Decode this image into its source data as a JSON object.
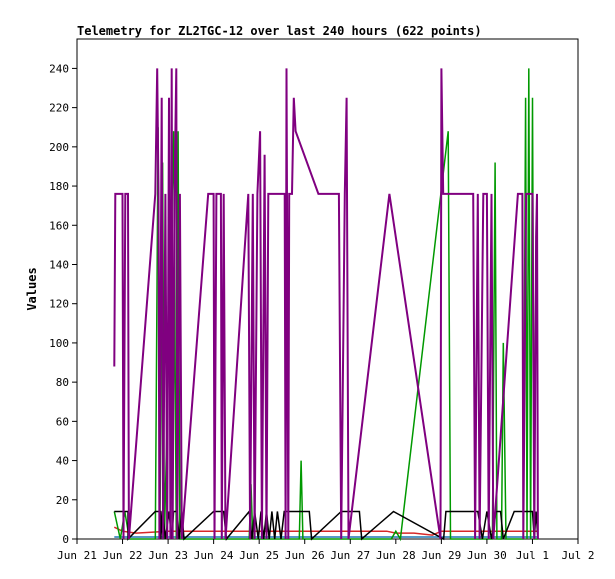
{
  "chart_data": {
    "type": "line",
    "title": "Telemetry for ZL2TGC-12 over last 240 hours (622 points)",
    "ylabel": "Values",
    "xlabel": "",
    "ylim": [
      0,
      255
    ],
    "xlim": [
      0,
      11
    ],
    "y_ticks": [
      0,
      20,
      40,
      60,
      80,
      100,
      120,
      140,
      160,
      180,
      200,
      220,
      240
    ],
    "x_ticks": [
      {
        "x": 0,
        "label": "Jun 21"
      },
      {
        "x": 1,
        "label": "Jun 22"
      },
      {
        "x": 2,
        "label": "Jun 23"
      },
      {
        "x": 3,
        "label": "Jun 24"
      },
      {
        "x": 4,
        "label": "Jun 25"
      },
      {
        "x": 5,
        "label": "Jun 26"
      },
      {
        "x": 6,
        "label": "Jun 27"
      },
      {
        "x": 7,
        "label": "Jun 28"
      },
      {
        "x": 8,
        "label": "Jun 29"
      },
      {
        "x": 9,
        "label": "Jun 30"
      },
      {
        "x": 10,
        "label": "Jul 1"
      },
      {
        "x": 11,
        "label": "Jul 2"
      }
    ],
    "x_unit": "days since Jun 21 00:00",
    "grid": false,
    "legend": "none",
    "series": [
      {
        "color": "#1f77b4",
        "points": [
          [
            0.82,
            1
          ],
          [
            9.98,
            1
          ],
          [
            10.12,
            1
          ]
        ]
      },
      {
        "color": "#d62728",
        "points": [
          [
            0.82,
            6
          ],
          [
            1.0,
            4
          ],
          [
            1.3,
            3
          ],
          [
            2.0,
            4
          ],
          [
            3.0,
            4
          ],
          [
            4.0,
            4
          ],
          [
            5.0,
            4
          ],
          [
            6.0,
            4
          ],
          [
            6.8,
            4
          ],
          [
            7.0,
            3
          ],
          [
            7.4,
            3
          ],
          [
            7.8,
            2
          ],
          [
            8.0,
            4
          ],
          [
            9.0,
            4
          ],
          [
            10.0,
            4
          ],
          [
            10.12,
            4
          ]
        ]
      },
      {
        "color": "#009900",
        "points": [
          [
            0.82,
            14
          ],
          [
            0.95,
            0
          ],
          [
            1.05,
            14
          ],
          [
            1.15,
            0
          ],
          [
            1.72,
            0
          ],
          [
            1.78,
            210
          ],
          [
            1.82,
            0
          ],
          [
            1.88,
            192
          ],
          [
            1.92,
            0
          ],
          [
            2.12,
            208
          ],
          [
            2.18,
            0
          ],
          [
            2.22,
            208
          ],
          [
            2.26,
            0
          ],
          [
            3.78,
            0
          ],
          [
            3.82,
            28
          ],
          [
            3.86,
            0
          ],
          [
            4.88,
            0
          ],
          [
            4.92,
            40
          ],
          [
            4.96,
            0
          ],
          [
            6.9,
            0
          ],
          [
            7.0,
            4
          ],
          [
            7.1,
            0
          ],
          [
            8.15,
            208
          ],
          [
            8.2,
            0
          ],
          [
            9.12,
            0
          ],
          [
            9.18,
            192
          ],
          [
            9.22,
            0
          ],
          [
            9.32,
            0
          ],
          [
            9.36,
            100
          ],
          [
            9.42,
            0
          ],
          [
            9.8,
            0
          ],
          [
            9.85,
            225
          ],
          [
            9.88,
            0
          ],
          [
            9.92,
            240
          ],
          [
            9.96,
            0
          ],
          [
            10.0,
            225
          ],
          [
            10.04,
            0
          ],
          [
            10.12,
            0
          ]
        ]
      },
      {
        "color": "#000000",
        "points": [
          [
            0.82,
            14
          ],
          [
            1.12,
            14
          ],
          [
            1.12,
            0
          ],
          [
            1.72,
            14
          ],
          [
            1.84,
            14
          ],
          [
            1.84,
            0
          ],
          [
            1.88,
            14
          ],
          [
            1.94,
            0
          ],
          [
            2.02,
            14
          ],
          [
            2.08,
            0
          ],
          [
            2.12,
            14
          ],
          [
            2.2,
            14
          ],
          [
            2.24,
            0
          ],
          [
            2.3,
            14
          ],
          [
            2.35,
            0
          ],
          [
            3.0,
            14
          ],
          [
            3.22,
            14
          ],
          [
            3.28,
            0
          ],
          [
            3.78,
            14
          ],
          [
            3.84,
            0
          ],
          [
            3.9,
            14
          ],
          [
            3.98,
            0
          ],
          [
            4.04,
            14
          ],
          [
            4.1,
            0
          ],
          [
            4.16,
            14
          ],
          [
            4.22,
            0
          ],
          [
            4.28,
            14
          ],
          [
            4.34,
            0
          ],
          [
            4.4,
            14
          ],
          [
            4.48,
            0
          ],
          [
            4.55,
            14
          ],
          [
            5.1,
            14
          ],
          [
            5.15,
            0
          ],
          [
            5.8,
            14
          ],
          [
            6.2,
            14
          ],
          [
            6.25,
            0
          ],
          [
            6.95,
            14
          ],
          [
            8.05,
            0
          ],
          [
            8.1,
            14
          ],
          [
            8.8,
            14
          ],
          [
            8.9,
            0
          ],
          [
            9.0,
            14
          ],
          [
            9.1,
            0
          ],
          [
            9.2,
            14
          ],
          [
            9.3,
            14
          ],
          [
            9.36,
            0
          ],
          [
            9.6,
            14
          ],
          [
            10.0,
            14
          ],
          [
            10.04,
            0
          ],
          [
            10.08,
            14
          ],
          [
            10.12,
            0
          ]
        ]
      },
      {
        "color": "#800080",
        "points": [
          [
            0.82,
            88
          ],
          [
            0.84,
            176
          ],
          [
            1.0,
            176
          ],
          [
            1.02,
            0
          ],
          [
            1.06,
            176
          ],
          [
            1.12,
            176
          ],
          [
            1.14,
            0
          ],
          [
            1.72,
            176
          ],
          [
            1.76,
            240
          ],
          [
            1.79,
            176
          ],
          [
            1.81,
            0
          ],
          [
            1.86,
            225
          ],
          [
            1.89,
            0
          ],
          [
            1.94,
            176
          ],
          [
            1.98,
            0
          ],
          [
            2.02,
            225
          ],
          [
            2.05,
            0
          ],
          [
            2.08,
            240
          ],
          [
            2.1,
            0
          ],
          [
            2.14,
            176
          ],
          [
            2.18,
            240
          ],
          [
            2.2,
            0
          ],
          [
            2.26,
            176
          ],
          [
            2.3,
            0
          ],
          [
            2.88,
            176
          ],
          [
            3.0,
            176
          ],
          [
            3.02,
            0
          ],
          [
            3.06,
            176
          ],
          [
            3.16,
            176
          ],
          [
            3.18,
            0
          ],
          [
            3.22,
            176
          ],
          [
            3.26,
            0
          ],
          [
            3.76,
            176
          ],
          [
            3.8,
            0
          ],
          [
            3.86,
            176
          ],
          [
            3.9,
            0
          ],
          [
            3.96,
            176
          ],
          [
            4.02,
            208
          ],
          [
            4.06,
            0
          ],
          [
            4.12,
            196
          ],
          [
            4.16,
            0
          ],
          [
            4.2,
            176
          ],
          [
            4.56,
            176
          ],
          [
            4.58,
            0
          ],
          [
            4.6,
            240
          ],
          [
            4.64,
            0
          ],
          [
            4.66,
            176
          ],
          [
            4.72,
            176
          ],
          [
            4.76,
            225
          ],
          [
            4.8,
            208
          ],
          [
            5.3,
            176
          ],
          [
            5.35,
            176
          ],
          [
            5.75,
            176
          ],
          [
            5.8,
            0
          ],
          [
            5.88,
            176
          ],
          [
            5.92,
            225
          ],
          [
            5.96,
            0
          ],
          [
            6.86,
            176
          ],
          [
            7.98,
            0
          ],
          [
            8.0,
            240
          ],
          [
            8.04,
            176
          ],
          [
            8.7,
            176
          ],
          [
            8.74,
            0
          ],
          [
            8.8,
            176
          ],
          [
            8.84,
            0
          ],
          [
            8.92,
            176
          ],
          [
            9.0,
            176
          ],
          [
            9.04,
            0
          ],
          [
            9.1,
            176
          ],
          [
            9.14,
            0
          ],
          [
            9.68,
            176
          ],
          [
            9.78,
            176
          ],
          [
            9.8,
            0
          ],
          [
            9.86,
            176
          ],
          [
            10.0,
            176
          ],
          [
            10.04,
            0
          ],
          [
            10.08,
            154
          ],
          [
            10.1,
            176
          ],
          [
            10.12,
            0
          ]
        ]
      }
    ]
  }
}
